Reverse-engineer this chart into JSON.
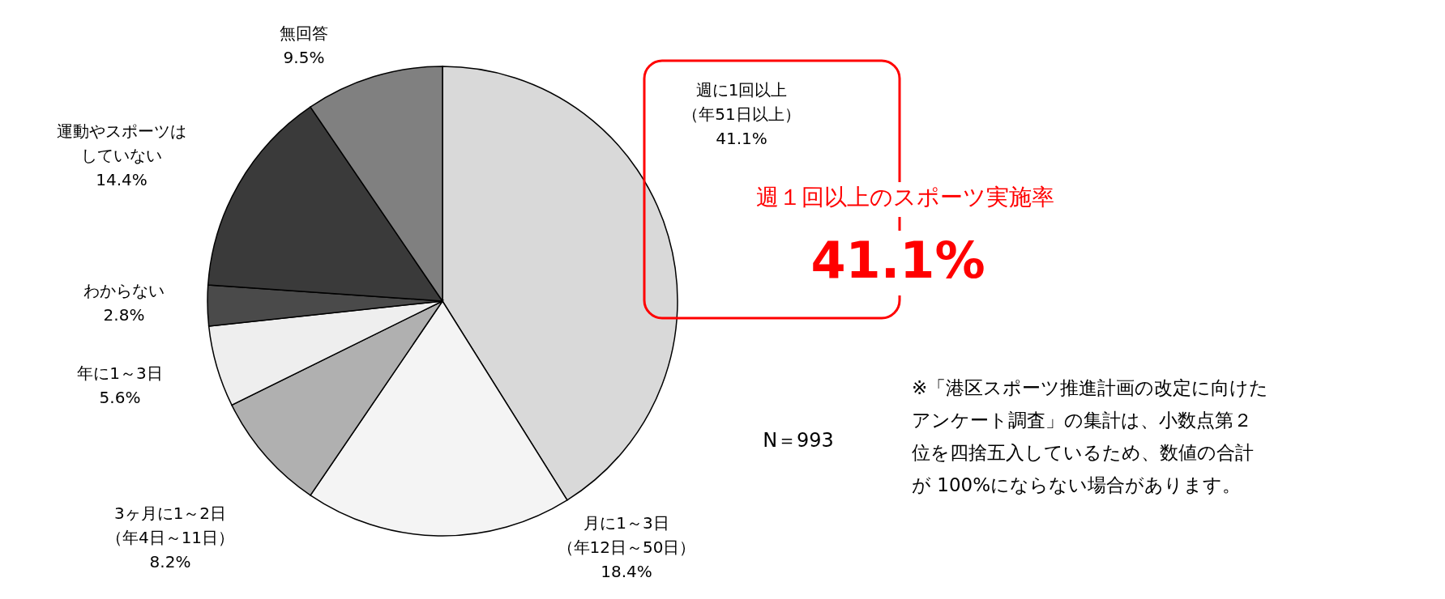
{
  "chart_data": {
    "type": "pie",
    "categories": [
      "週に1回以上（年51日以上）",
      "月に1～3日（年12日～50日）",
      "3ヶ月に1～2日（年4日～11日）",
      "年に1～3日",
      "わからない",
      "運動やスポーツはしていない",
      "無回答"
    ],
    "values": [
      41.1,
      18.4,
      8.2,
      5.6,
      2.8,
      14.4,
      9.5
    ],
    "colors": [
      "#d9d9d9",
      "#f4f4f4",
      "#b0b0b0",
      "#eeeeee",
      "#4a4a4a",
      "#3a3a3a",
      "#808080"
    ],
    "value_labels": [
      "41.1%",
      "18.4%",
      "8.2%",
      "5.6%",
      "2.8%",
      "14.4%",
      "9.5%"
    ],
    "annotations": [
      "週１回以上のスポーツ実施率",
      "41.1%",
      "N＝993",
      "※「港区スポーツ推進計画の改定に向けたアンケート調査」の集計は、小数点第２位を四捨五入しているため、数値の合計が 100%にならない場合があります。"
    ]
  }
}
